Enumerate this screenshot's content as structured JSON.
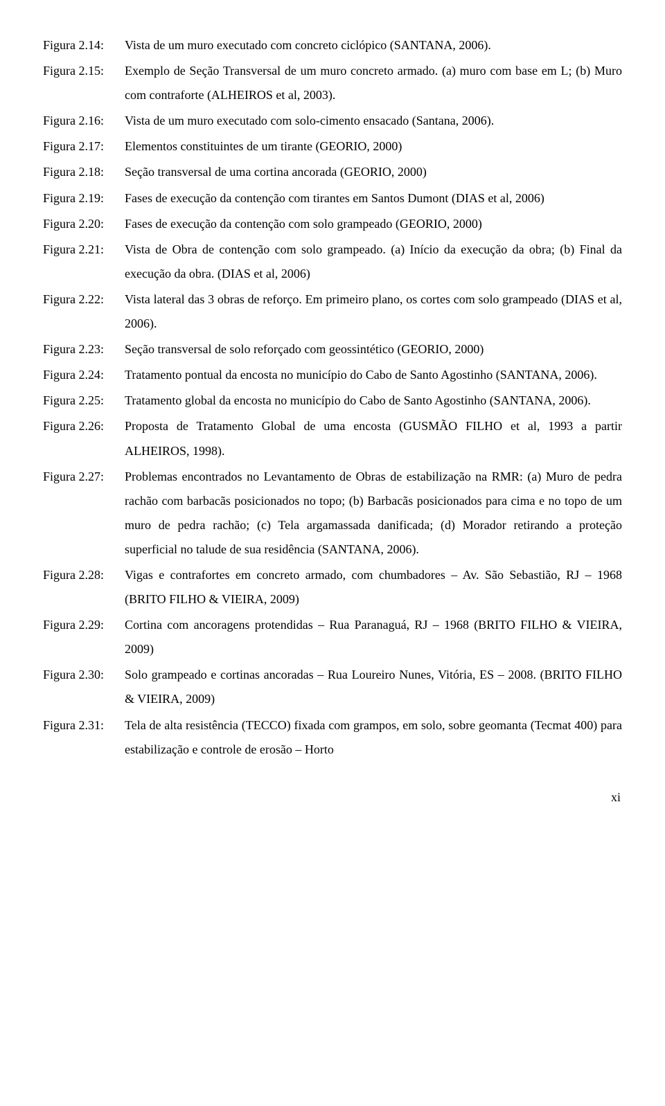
{
  "entries": [
    {
      "label": "Figura 2.14:",
      "desc": "Vista de um muro executado com concreto ciclópico (SANTANA, 2006)."
    },
    {
      "label": "Figura 2.15:",
      "desc": "Exemplo de Seção Transversal de um muro concreto armado. (a) muro com base em L; (b) Muro com contraforte (ALHEIROS et al, 2003)."
    },
    {
      "label": "Figura 2.16:",
      "desc": "Vista de um muro executado com solo-cimento ensacado (Santana, 2006)."
    },
    {
      "label": "Figura 2.17:",
      "desc": "Elementos constituintes de um tirante (GEORIO, 2000)"
    },
    {
      "label": "Figura 2.18:",
      "desc": "Seção transversal de uma cortina ancorada (GEORIO, 2000)"
    },
    {
      "label": "Figura 2.19:",
      "desc": "Fases de execução da contenção com tirantes em Santos Dumont (DIAS et al, 2006)"
    },
    {
      "label": "Figura 2.20:",
      "desc": "Fases de execução da contenção com solo grampeado (GEORIO, 2000)"
    },
    {
      "label": "Figura 2.21:",
      "desc": "Vista de Obra de contenção com solo grampeado. (a) Início da execução da obra; (b) Final da execução da obra. (DIAS et al, 2006)"
    },
    {
      "label": "Figura 2.22:",
      "desc": "Vista lateral das 3 obras de reforço. Em primeiro plano, os cortes com solo grampeado (DIAS et al, 2006)."
    },
    {
      "label": "Figura 2.23:",
      "desc": "Seção transversal de solo reforçado com geossintético (GEORIO, 2000)"
    },
    {
      "label": "Figura 2.24:",
      "desc": "Tratamento pontual da encosta no município do Cabo de Santo Agostinho (SANTANA, 2006)."
    },
    {
      "label": "Figura 2.25:",
      "desc": "Tratamento global da encosta no município do Cabo de Santo Agostinho (SANTANA, 2006)."
    },
    {
      "label": "Figura 2.26:",
      "desc": "Proposta de Tratamento Global de uma encosta (GUSMÃO FILHO et al, 1993 a partir ALHEIROS, 1998)."
    },
    {
      "label": "Figura 2.27:",
      "desc": "Problemas encontrados no Levantamento de Obras de estabilização na RMR: (a) Muro de pedra rachão com barbacãs posicionados no topo; (b) Barbacãs posicionados para cima e no topo de um muro de pedra rachão; (c) Tela argamassada danificada; (d) Morador retirando a proteção superficial no talude de sua residência (SANTANA, 2006)."
    },
    {
      "label": "Figura 2.28:",
      "desc": "Vigas e contrafortes em concreto armado, com chumbadores – Av. São Sebastião, RJ – 1968 (BRITO FILHO & VIEIRA, 2009)"
    },
    {
      "label": "Figura 2.29:",
      "desc": "Cortina com ancoragens protendidas – Rua Paranaguá, RJ – 1968 (BRITO FILHO & VIEIRA, 2009)"
    },
    {
      "label": "Figura 2.30:",
      "desc": "Solo grampeado e cortinas ancoradas – Rua Loureiro Nunes, Vitória, ES – 2008. (BRITO FILHO & VIEIRA, 2009)"
    },
    {
      "label": "Figura 2.31:",
      "desc": "Tela de alta resistência (TECCO) fixada com grampos, em solo, sobre geomanta (Tecmat 400) para estabilização e controle de erosão – Horto"
    }
  ],
  "page_number": "xi"
}
